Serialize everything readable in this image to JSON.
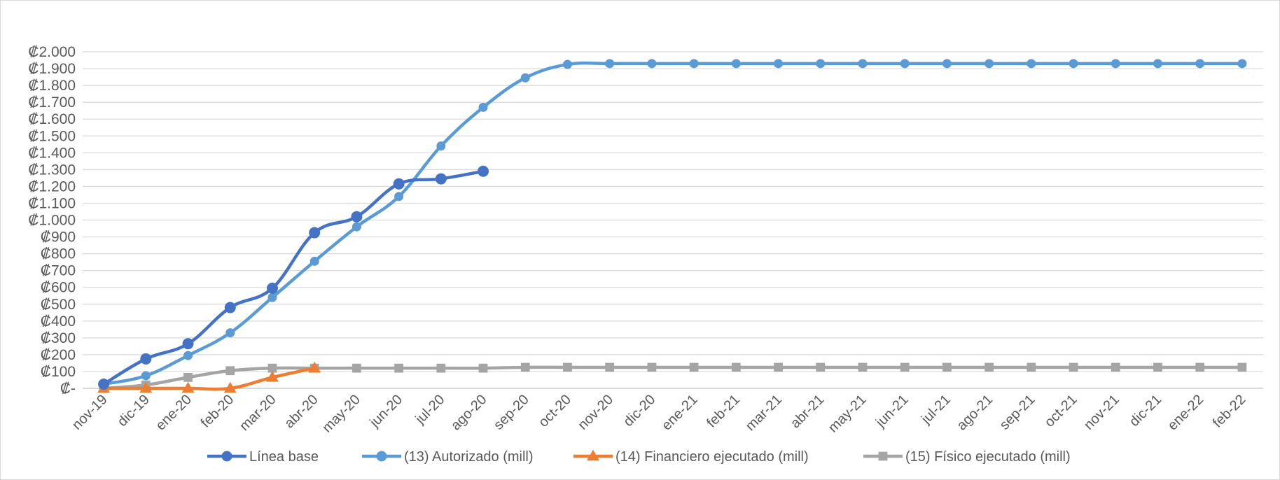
{
  "chart_data": {
    "type": "line",
    "title": "",
    "xlabel": "",
    "ylabel": "",
    "ylim": [
      0,
      2000
    ],
    "y_ticks": [
      {
        "v": 0,
        "label": "₡-"
      },
      {
        "v": 100,
        "label": "₡100"
      },
      {
        "v": 200,
        "label": "₡200"
      },
      {
        "v": 300,
        "label": "₡300"
      },
      {
        "v": 400,
        "label": "₡400"
      },
      {
        "v": 500,
        "label": "₡500"
      },
      {
        "v": 600,
        "label": "₡600"
      },
      {
        "v": 700,
        "label": "₡700"
      },
      {
        "v": 800,
        "label": "₡800"
      },
      {
        "v": 900,
        "label": "₡900"
      },
      {
        "v": 1000,
        "label": "₡1.000"
      },
      {
        "v": 1100,
        "label": "₡1.100"
      },
      {
        "v": 1200,
        "label": "₡1.200"
      },
      {
        "v": 1300,
        "label": "₡1.300"
      },
      {
        "v": 1400,
        "label": "₡1.400"
      },
      {
        "v": 1500,
        "label": "₡1.500"
      },
      {
        "v": 1600,
        "label": "₡1.600"
      },
      {
        "v": 1700,
        "label": "₡1.700"
      },
      {
        "v": 1800,
        "label": "₡1.800"
      },
      {
        "v": 1900,
        "label": "₡1.900"
      },
      {
        "v": 2000,
        "label": "₡2.000"
      }
    ],
    "grid": true,
    "legend_position": "bottom",
    "categories": [
      "nov-19",
      "dic-19",
      "ene-20",
      "feb-20",
      "mar-20",
      "abr-20",
      "may-20",
      "jun-20",
      "jul-20",
      "ago-20",
      "sep-20",
      "oct-20",
      "nov-20",
      "dic-20",
      "ene-21",
      "feb-21",
      "mar-21",
      "abr-21",
      "may-21",
      "jun-21",
      "jul-21",
      "ago-21",
      "sep-21",
      "oct-21",
      "nov-21",
      "dic-21",
      "ene-22",
      "feb-22"
    ],
    "series": [
      {
        "name": "Línea base",
        "color": "#4472C4",
        "marker": "circle",
        "values": [
          25,
          175,
          265,
          480,
          595,
          925,
          1020,
          1215,
          1245,
          1290,
          null,
          null,
          null,
          null,
          null,
          null,
          null,
          null,
          null,
          null,
          null,
          null,
          null,
          null,
          null,
          null,
          null,
          null
        ]
      },
      {
        "name": "(13) Autorizado (mill)",
        "color": "#5B9BD5",
        "marker": "circle",
        "values": [
          25,
          75,
          195,
          330,
          540,
          755,
          960,
          1140,
          1440,
          1670,
          1845,
          1925,
          1930,
          1930,
          1930,
          1930,
          1930,
          1930,
          1930,
          1930,
          1930,
          1930,
          1930,
          1930,
          1930,
          1930,
          1930,
          1930
        ]
      },
      {
        "name": "(14) Financiero ejecutado (mill)",
        "color": "#ED7D31",
        "marker": "triangle",
        "values": [
          0,
          0,
          0,
          0,
          65,
          120,
          null,
          null,
          null,
          null,
          null,
          null,
          null,
          null,
          null,
          null,
          null,
          null,
          null,
          null,
          null,
          null,
          null,
          null,
          null,
          null,
          null,
          null
        ]
      },
      {
        "name": "(15) Físico ejecutado (mill)",
        "color": "#A5A5A5",
        "marker": "square",
        "values": [
          0,
          20,
          65,
          105,
          120,
          120,
          120,
          120,
          120,
          120,
          125,
          125,
          125,
          125,
          125,
          125,
          125,
          125,
          125,
          125,
          125,
          125,
          125,
          125,
          125,
          125,
          125,
          125
        ]
      }
    ]
  }
}
